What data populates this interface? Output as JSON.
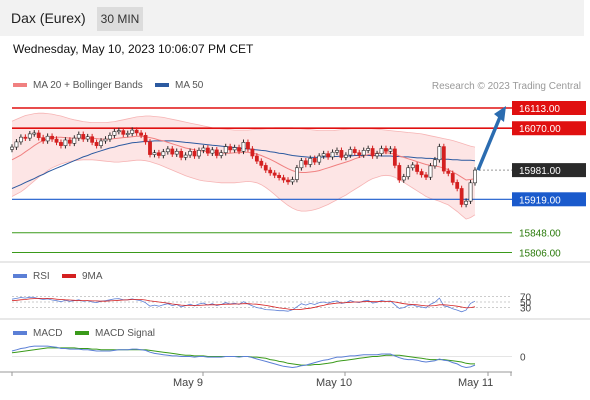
{
  "header": {
    "title": "Dax (Eurex)",
    "timeframe": "30 MIN"
  },
  "datetime": "Wednesday, May 10, 2023 10:06:07 PM CET",
  "credit": "Research © 2023 Trading Central",
  "legend_main": [
    {
      "label": "MA 20 + Bollinger Bands",
      "color": "#f08080"
    },
    {
      "label": "MA 50",
      "color": "#2c5aa0"
    }
  ],
  "legend_rsi": [
    {
      "label": "RSI",
      "color": "#5b7fd6"
    },
    {
      "label": "9MA",
      "color": "#d42020"
    }
  ],
  "legend_macd": [
    {
      "label": "MACD",
      "color": "#5b7fd6"
    },
    {
      "label": "MACD Signal",
      "color": "#3a9a1a"
    }
  ],
  "x_labels": [
    "May 9",
    "May 10",
    "May 11"
  ],
  "colors": {
    "resistance": "#e01010",
    "support_blue": "#1a5acc",
    "support_green": "#3a9a1a",
    "up": "#2a2a2a",
    "down": "#d42020",
    "arrow": "#2b6cb0"
  },
  "chart_data": [
    {
      "type": "candlestick",
      "title": "Dax (Eurex)",
      "timeframe": "30 MIN",
      "x_categories": [
        "May 9",
        "May 10",
        "May 11"
      ],
      "ylim": [
        15790,
        16130
      ],
      "price_levels": [
        {
          "value": 16113.0,
          "label": "16113.00",
          "kind": "resistance"
        },
        {
          "value": 16070.0,
          "label": "16070.00",
          "kind": "resistance"
        },
        {
          "value": 15981.0,
          "label": "15981.00",
          "kind": "last"
        },
        {
          "value": 15919.0,
          "label": "15919.00",
          "kind": "pivot"
        },
        {
          "value": 15848.0,
          "label": "15848.00",
          "kind": "support"
        },
        {
          "value": 15806.0,
          "label": "15806.00",
          "kind": "support"
        }
      ],
      "close_series": [
        16030,
        16041,
        16051,
        16049,
        16058,
        16060,
        16050,
        16043,
        16053,
        16047,
        16040,
        16033,
        16045,
        16038,
        16049,
        16057,
        16047,
        16052,
        16040,
        16033,
        16043,
        16047,
        16055,
        16063,
        16065,
        16057,
        16059,
        16066,
        16060,
        16055,
        16041,
        16014,
        16018,
        16012,
        16020,
        16026,
        16015,
        16021,
        16008,
        16013,
        16021,
        16011,
        16023,
        16028,
        16017,
        16024,
        16012,
        16018,
        16031,
        16024,
        16029,
        16021,
        16040,
        16026,
        16011,
        16000,
        15991,
        15981,
        15975,
        15970,
        15965,
        15960,
        15956,
        15961,
        15986,
        16001,
        15993,
        16006,
        15998,
        16011,
        16016,
        16009,
        16019,
        16023,
        16008,
        16013,
        16025,
        16018,
        16013,
        16023,
        16027,
        16011,
        16016,
        16027,
        16021,
        16026,
        15991,
        15960,
        15967,
        15986,
        15992,
        15978,
        15971,
        15966,
        15990,
        16003,
        16031,
        15979,
        15974,
        15955,
        15942,
        15908,
        15915,
        15954,
        15981
      ],
      "ma20_series": [
        16003,
        16008,
        16013,
        16020,
        16026,
        16033,
        16039,
        16044,
        16048,
        16050,
        16051,
        16051,
        16050,
        16049,
        16049,
        16049,
        16049,
        16049,
        16049,
        16048,
        16047,
        16047,
        16047,
        16048,
        16049,
        16050,
        16051,
        16052,
        16053,
        16053,
        16052,
        16050,
        16048,
        16045,
        16043,
        16040,
        16037,
        16034,
        16031,
        16028,
        16026,
        16024,
        16022,
        16021,
        16020,
        16019,
        16018,
        16017,
        16017,
        16017,
        16018,
        16018,
        16019,
        16019,
        16017,
        16015,
        16012,
        16008,
        16004,
        15999,
        15994,
        15989,
        15984,
        15980,
        15977,
        15976,
        15976,
        15977,
        15978,
        15980,
        15983,
        15986,
        15989,
        15992,
        15995,
        15998,
        16001,
        16005,
        16008,
        16011,
        16014,
        16016,
        16017,
        16018,
        16018,
        16017,
        16015,
        16011,
        16008,
        16005,
        16002,
        15999,
        15996,
        15993,
        15991,
        15990,
        15988,
        15985,
        15982,
        15977,
        15972,
        15966,
        15960,
        15961,
        15963
      ],
      "ma50_series": [
        15942,
        15946,
        15950,
        15955,
        15959,
        15963,
        15968,
        15972,
        15977,
        15981,
        15985,
        15989,
        15993,
        15997,
        16001,
        16005,
        16009,
        16012,
        16016,
        16019,
        16022,
        16025,
        16028,
        16030,
        16033,
        16035,
        16037,
        16039,
        16040,
        16041,
        16042,
        16042,
        16043,
        16043,
        16043,
        16043,
        16043,
        16042,
        16041,
        16040,
        16039,
        16038,
        16037,
        16036,
        16035,
        16034,
        16033,
        16032,
        16031,
        16030,
        16029,
        16028,
        16027,
        16026,
        16025,
        16024,
        16023,
        16022,
        16020,
        16019,
        16017,
        16016,
        16014,
        16012,
        16011,
        16010,
        16009,
        16008,
        16008,
        16008,
        16009,
        16009,
        16010,
        16010,
        16011,
        16011,
        16011,
        16012,
        16012,
        16012,
        16012,
        16012,
        16012,
        16011,
        16011,
        16011,
        16010,
        16010,
        16009,
        16009,
        16008,
        16007,
        16007,
        16006,
        16006,
        16005,
        16005,
        16004,
        16004,
        16003,
        16003,
        16002,
        16002,
        16002,
        16001
      ],
      "bollinger_upper": [
        16085,
        16089,
        16093,
        16097,
        16099,
        16101,
        16102,
        16102,
        16101,
        16100,
        16098,
        16096,
        16093,
        16090,
        16088,
        16086,
        16084,
        16083,
        16082,
        16082,
        16082,
        16082,
        16083,
        16084,
        16086,
        16088,
        16090,
        16092,
        16094,
        16095,
        16096,
        16096,
        16095,
        16094,
        16093,
        16091,
        16089,
        16087,
        16085,
        16083,
        16081,
        16079,
        16077,
        16075,
        16073,
        16071,
        16070,
        16069,
        16068,
        16067,
        16066,
        16066,
        16066,
        16066,
        16067,
        16068,
        16068,
        16069,
        16070,
        16071,
        16071,
        16071,
        16071,
        16071,
        16070,
        16069,
        16068,
        16067,
        16066,
        16065,
        16065,
        16065,
        16065,
        16066,
        16067,
        16068,
        16069,
        16070,
        16070,
        16070,
        16070,
        16069,
        16068,
        16067,
        16066,
        16065,
        16064,
        16063,
        16062,
        16061,
        16060,
        16059,
        16058,
        16056,
        16054,
        16052,
        16050,
        16048,
        16046,
        16044,
        16041,
        16038,
        16035,
        16032,
        16030
      ],
      "bollinger_lower": [
        15925,
        15930,
        15935,
        15942,
        15950,
        15958,
        15966,
        15973,
        15980,
        15986,
        15990,
        15994,
        15997,
        15999,
        16001,
        16002,
        16003,
        16003,
        16003,
        16002,
        16001,
        16000,
        15999,
        15998,
        15998,
        15999,
        16000,
        16001,
        16002,
        16002,
        16001,
        15999,
        15996,
        15993,
        15989,
        15985,
        15981,
        15977,
        15973,
        15969,
        15966,
        15963,
        15960,
        15958,
        15957,
        15956,
        15955,
        15954,
        15954,
        15954,
        15954,
        15955,
        15956,
        15957,
        15956,
        15954,
        15950,
        15944,
        15937,
        15929,
        15921,
        15913,
        15906,
        15900,
        15896,
        15894,
        15894,
        15895,
        15897,
        15900,
        15904,
        15908,
        15913,
        15918,
        15923,
        15928,
        15934,
        15940,
        15946,
        15952,
        15958,
        15963,
        15966,
        15969,
        15970,
        15969,
        15966,
        15961,
        15955,
        15949,
        15943,
        15937,
        15931,
        15925,
        15921,
        15918,
        15915,
        15911,
        15907,
        15900,
        15893,
        15885,
        15877,
        15880,
        15886
      ],
      "annotation": "Forecast arrow from 15981.00 toward 16113.00"
    },
    {
      "type": "line",
      "title": "RSI",
      "levels": [
        70,
        50,
        30
      ],
      "series": [
        {
          "name": "RSI",
          "values": [
            60,
            63,
            66,
            64,
            67,
            66,
            62,
            59,
            61,
            57,
            55,
            51,
            56,
            52,
            55,
            58,
            53,
            55,
            50,
            48,
            53,
            55,
            58,
            61,
            62,
            58,
            58,
            61,
            57,
            55,
            47,
            35,
            39,
            35,
            40,
            44,
            37,
            41,
            33,
            37,
            42,
            36,
            43,
            46,
            39,
            44,
            37,
            41,
            48,
            43,
            46,
            41,
            51,
            43,
            36,
            30,
            27,
            23,
            22,
            21,
            19,
            19,
            17,
            22,
            33,
            44,
            39,
            45,
            41,
            48,
            50,
            46,
            51,
            54,
            45,
            48,
            55,
            50,
            48,
            54,
            56,
            46,
            49,
            55,
            52,
            54,
            40,
            27,
            30,
            38,
            40,
            34,
            32,
            29,
            42,
            49,
            64,
            36,
            33,
            26,
            21,
            15,
            21,
            45,
            53
          ]
        },
        {
          "name": "9MA",
          "values": [
            55,
            56,
            58,
            59,
            61,
            62,
            63,
            63,
            63,
            62,
            60,
            59,
            58,
            57,
            56,
            55,
            55,
            55,
            54,
            54,
            53,
            53,
            54,
            55,
            56,
            57,
            58,
            59,
            59,
            59,
            57,
            54,
            52,
            50,
            48,
            46,
            43,
            41,
            39,
            38,
            38,
            38,
            38,
            39,
            40,
            40,
            40,
            41,
            42,
            42,
            43,
            43,
            44,
            44,
            43,
            42,
            40,
            38,
            35,
            32,
            29,
            27,
            25,
            23,
            23,
            24,
            26,
            28,
            31,
            35,
            38,
            42,
            44,
            46,
            47,
            48,
            49,
            50,
            50,
            51,
            52,
            51,
            51,
            52,
            52,
            52,
            50,
            47,
            44,
            42,
            41,
            40,
            38,
            36,
            36,
            37,
            40,
            40,
            39,
            37,
            35,
            32,
            29,
            30,
            33
          ]
        }
      ]
    },
    {
      "type": "line",
      "title": "MACD",
      "levels": [
        0
      ],
      "series": [
        {
          "name": "MACD",
          "values": [
            9,
            11,
            13,
            14,
            16,
            17,
            17,
            17,
            17,
            16,
            15,
            13,
            13,
            12,
            12,
            12,
            11,
            11,
            10,
            9,
            9,
            9,
            9,
            10,
            11,
            11,
            11,
            12,
            12,
            11,
            10,
            7,
            5,
            4,
            3,
            2,
            1,
            1,
            0,
            0,
            0,
            -1,
            0,
            0,
            -1,
            -1,
            -1,
            -1,
            0,
            0,
            0,
            -1,
            0,
            0,
            -2,
            -4,
            -6,
            -8,
            -10,
            -12,
            -14,
            -16,
            -17,
            -18,
            -17,
            -15,
            -14,
            -12,
            -10,
            -8,
            -6,
            -5,
            -3,
            -1,
            -1,
            0,
            1,
            1,
            2,
            3,
            3,
            3,
            3,
            4,
            4,
            4,
            1,
            -2,
            -4,
            -5,
            -5,
            -6,
            -8,
            -9,
            -8,
            -7,
            -4,
            -6,
            -7,
            -10,
            -12,
            -16,
            -18,
            -17,
            -14
          ]
        },
        {
          "name": "MACD Signal",
          "values": [
            6,
            7,
            8,
            9,
            10,
            11,
            12,
            13,
            14,
            14,
            14,
            14,
            14,
            14,
            14,
            13,
            13,
            13,
            12,
            12,
            11,
            11,
            11,
            11,
            11,
            11,
            11,
            11,
            11,
            11,
            11,
            10,
            9,
            8,
            7,
            6,
            5,
            4,
            3,
            2,
            2,
            1,
            1,
            1,
            0,
            0,
            0,
            0,
            0,
            0,
            0,
            0,
            0,
            0,
            -1,
            -1,
            -2,
            -3,
            -5,
            -6,
            -8,
            -9,
            -11,
            -12,
            -13,
            -14,
            -14,
            -14,
            -13,
            -13,
            -12,
            -11,
            -10,
            -8,
            -7,
            -6,
            -5,
            -4,
            -3,
            -2,
            -1,
            0,
            0,
            1,
            2,
            2,
            2,
            2,
            1,
            0,
            -1,
            -2,
            -3,
            -4,
            -5,
            -5,
            -5,
            -5,
            -6,
            -7,
            -8,
            -9,
            -11,
            -12,
            -12
          ]
        }
      ]
    }
  ]
}
